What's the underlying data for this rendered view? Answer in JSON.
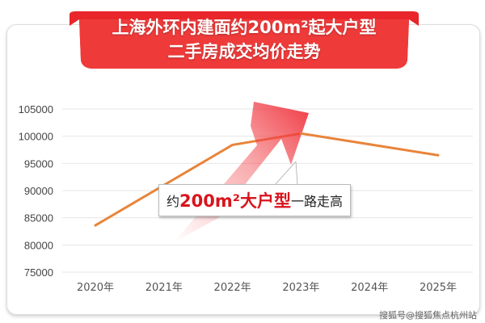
{
  "banner": {
    "line1": "上海外环内建面约200m²起大户型",
    "line2": "二手房成交均价走势",
    "color": "#e8262b"
  },
  "annotation": {
    "prefix": "约",
    "highlight": "200m²大户型",
    "suffix": "一路走高"
  },
  "watermark": "搜狐号@搜狐焦点杭州站",
  "chart_data": {
    "type": "line",
    "title": "上海外环内建面约200m²起大户型二手房成交均价走势",
    "categories": [
      "2020年",
      "2021年",
      "2022年",
      "2023年",
      "2024年",
      "2025年"
    ],
    "values": [
      83600,
      91000,
      98400,
      100500,
      98500,
      96500
    ],
    "yticks": [
      "75000",
      "80000",
      "85000",
      "90000",
      "95000",
      "100000",
      "105000"
    ],
    "ylim": [
      75000,
      105000
    ],
    "grid": true,
    "line_color": "#e8843a",
    "arrow_color": "#f0474c"
  }
}
